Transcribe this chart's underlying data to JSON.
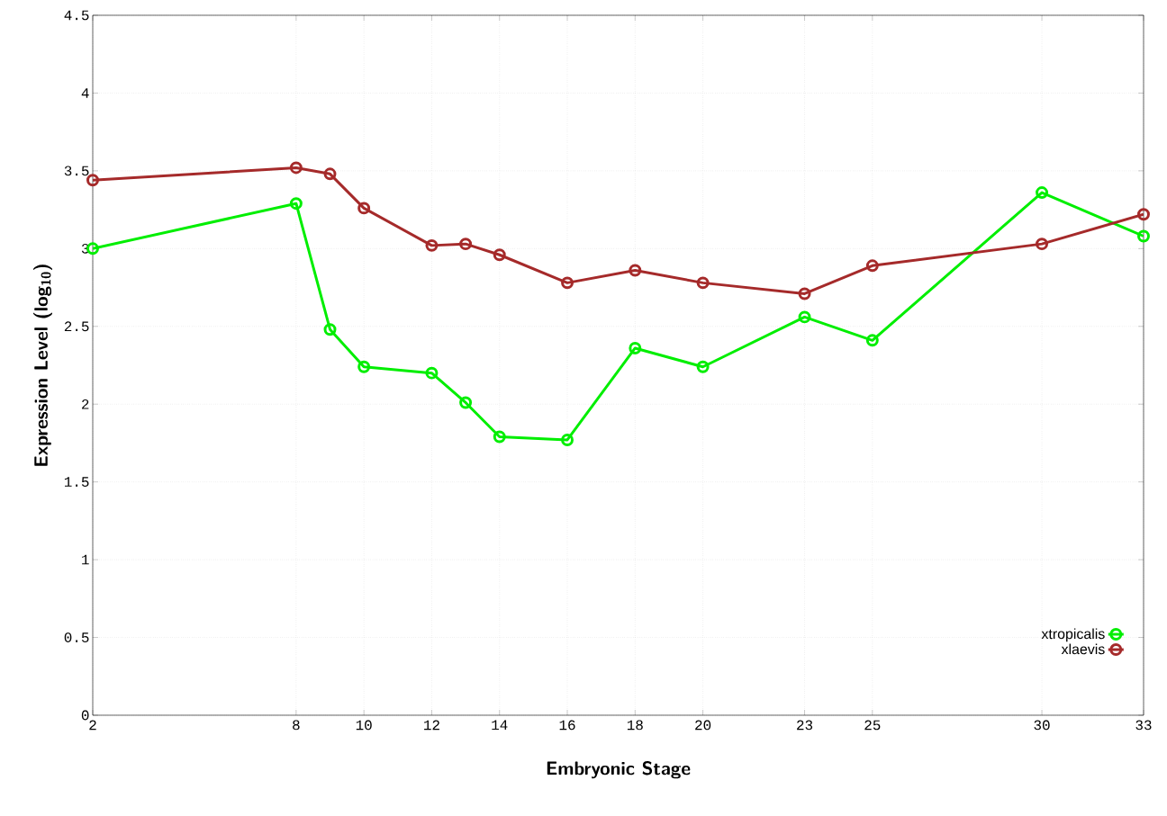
{
  "chart_data": {
    "type": "line",
    "xlabel": "Embryonic Stage",
    "ylabel": "Expression Level (log$_{10}$)",
    "xlim": [
      2,
      33
    ],
    "xticks": [
      2,
      8,
      10,
      12,
      14,
      16,
      18,
      20,
      23,
      25,
      30,
      33
    ],
    "ylim": [
      0,
      4.5
    ],
    "yticks": [
      0,
      0.5,
      1,
      1.5,
      2,
      2.5,
      3,
      3.5,
      4,
      4.5
    ],
    "grid": true,
    "legend": "bottom right",
    "marker": "circle",
    "line_style": "solid",
    "series": [
      {
        "name": "xtropicalis",
        "color": "#00ee00",
        "x": [
          2,
          8,
          9,
          10,
          12,
          13,
          14,
          16,
          18,
          20,
          23,
          25,
          30,
          33
        ],
        "values": [
          3.0,
          3.29,
          2.48,
          2.24,
          2.2,
          2.01,
          1.79,
          1.77,
          2.36,
          2.24,
          2.56,
          2.41,
          3.36,
          3.08
        ]
      },
      {
        "name": "xlaevis",
        "color": "#a52a2a",
        "x": [
          2,
          8,
          9,
          10,
          12,
          13,
          14,
          16,
          18,
          20,
          23,
          25,
          30,
          33
        ],
        "values": [
          3.44,
          3.52,
          3.48,
          3.26,
          3.02,
          3.03,
          2.96,
          2.78,
          2.86,
          2.78,
          2.71,
          2.89,
          3.03,
          3.22
        ]
      }
    ]
  }
}
